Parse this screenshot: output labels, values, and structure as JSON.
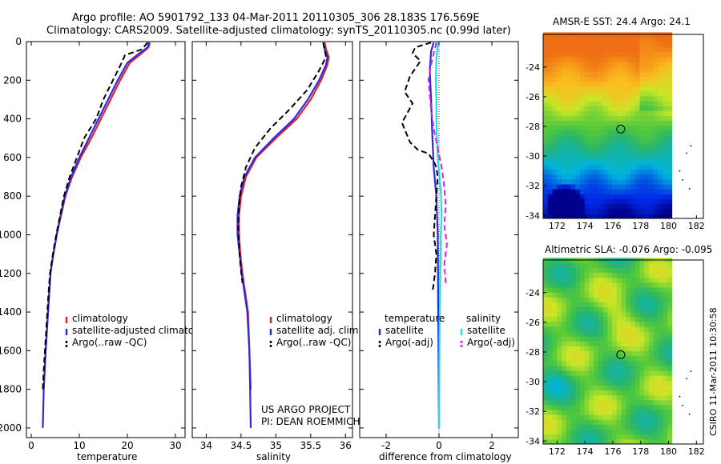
{
  "header": {
    "line1": "Argo profile: AO 5901792_133 04-Mar-2011 20110305_306 28.183S 176.569E",
    "line2": "Climatology: CARS2009. Satellite-adjusted climatology: synTS_20110305.nc (0.99d later)"
  },
  "credits": {
    "project": "US ARGO PROJECT",
    "pi": "PI: DEAN ROEMMICH",
    "stamp": "CSIRO 11-Mar-2011 10:30:58"
  },
  "colors": {
    "climatology": "#e8202a",
    "satellite": "#2a2ae0",
    "argo": "#000000",
    "sal_satellite": "#22e0e0",
    "sal_argo": "#e020e0"
  },
  "chart_data": [
    {
      "id": "temperature",
      "type": "line",
      "xlabel": "temperature",
      "ylabel": "",
      "xlim": [
        -1,
        32
      ],
      "ylim": [
        2050,
        0
      ],
      "xticks": [
        0,
        10,
        20,
        30
      ],
      "yticks": [
        0,
        200,
        400,
        600,
        800,
        1000,
        1200,
        1400,
        1600,
        1800,
        2000
      ],
      "legend": [
        "climatology",
        "satellite-adjusted climatology",
        "Argo(..raw -QC)"
      ],
      "series": [
        {
          "name": "climatology",
          "style": "solid",
          "color": "climatology",
          "points": [
            [
              24.7,
              5
            ],
            [
              24.4,
              30
            ],
            [
              22.5,
              70
            ],
            [
              20.5,
              110
            ],
            [
              18.5,
              200
            ],
            [
              16.5,
              300
            ],
            [
              14.5,
              400
            ],
            [
              12.5,
              500
            ],
            [
              10.3,
              600
            ],
            [
              8.5,
              700
            ],
            [
              7.1,
              800
            ],
            [
              6.2,
              900
            ],
            [
              5.3,
              1000
            ],
            [
              4.6,
              1100
            ],
            [
              4.0,
              1200
            ],
            [
              3.5,
              1400
            ],
            [
              3.0,
              1600
            ],
            [
              2.6,
              1800
            ]
          ]
        },
        {
          "name": "satellite-adjusted climatology",
          "style": "solid",
          "color": "satellite",
          "points": [
            [
              24.5,
              5
            ],
            [
              24.2,
              30
            ],
            [
              22.0,
              70
            ],
            [
              20.0,
              110
            ],
            [
              18.0,
              200
            ],
            [
              16.0,
              300
            ],
            [
              14.0,
              400
            ],
            [
              12.0,
              500
            ],
            [
              10.0,
              600
            ],
            [
              8.3,
              700
            ],
            [
              7.0,
              800
            ],
            [
              6.1,
              900
            ],
            [
              5.3,
              1000
            ],
            [
              4.6,
              1100
            ],
            [
              4.0,
              1200
            ],
            [
              3.5,
              1400
            ],
            [
              3.0,
              1600
            ],
            [
              2.6,
              1800
            ],
            [
              2.4,
              2000
            ]
          ]
        },
        {
          "name": "Argo(..raw -QC)",
          "style": "dashed",
          "color": "argo",
          "points": [
            [
              24.2,
              5
            ],
            [
              23.0,
              40
            ],
            [
              19.5,
              70
            ],
            [
              19.0,
              100
            ],
            [
              17.0,
              200
            ],
            [
              15.0,
              300
            ],
            [
              13.5,
              400
            ],
            [
              11.0,
              500
            ],
            [
              9.5,
              600
            ],
            [
              8.0,
              700
            ],
            [
              6.8,
              800
            ],
            [
              6.0,
              900
            ],
            [
              5.2,
              1000
            ],
            [
              4.5,
              1100
            ],
            [
              3.9,
              1200
            ],
            [
              3.6,
              1300
            ],
            [
              3.1,
              1500
            ],
            [
              2.6,
              1700
            ],
            [
              2.4,
              1800
            ]
          ]
        }
      ]
    },
    {
      "id": "salinity",
      "type": "line",
      "xlabel": "salinity",
      "ylabel": "",
      "xlim": [
        33.8,
        36.1
      ],
      "ylim": [
        2050,
        0
      ],
      "xticks": [
        34,
        34.5,
        35,
        35.5,
        36
      ],
      "legend": [
        "climatology",
        "satellite adj. clim.",
        "Argo(..raw -QC)"
      ],
      "series": [
        {
          "name": "climatology",
          "style": "solid",
          "color": "climatology",
          "points": [
            [
              35.7,
              5
            ],
            [
              35.72,
              40
            ],
            [
              35.76,
              80
            ],
            [
              35.74,
              120
            ],
            [
              35.65,
              200
            ],
            [
              35.5,
              300
            ],
            [
              35.3,
              400
            ],
            [
              35.0,
              500
            ],
            [
              34.72,
              600
            ],
            [
              34.57,
              700
            ],
            [
              34.5,
              800
            ],
            [
              34.47,
              900
            ],
            [
              34.47,
              1000
            ],
            [
              34.49,
              1100
            ],
            [
              34.52,
              1200
            ],
            [
              34.56,
              1300
            ],
            [
              34.6,
              1400
            ],
            [
              34.62,
              1600
            ],
            [
              34.64,
              1800
            ]
          ]
        },
        {
          "name": "satellite adj. clim.",
          "style": "solid",
          "color": "satellite",
          "points": [
            [
              35.68,
              5
            ],
            [
              35.7,
              40
            ],
            [
              35.74,
              80
            ],
            [
              35.72,
              120
            ],
            [
              35.62,
              200
            ],
            [
              35.46,
              300
            ],
            [
              35.26,
              400
            ],
            [
              34.97,
              500
            ],
            [
              34.7,
              600
            ],
            [
              34.55,
              700
            ],
            [
              34.48,
              800
            ],
            [
              34.45,
              900
            ],
            [
              34.45,
              1000
            ],
            [
              34.48,
              1100
            ],
            [
              34.51,
              1200
            ],
            [
              34.55,
              1300
            ],
            [
              34.59,
              1400
            ],
            [
              34.62,
              1600
            ],
            [
              34.63,
              1800
            ],
            [
              34.64,
              2000
            ]
          ]
        },
        {
          "name": "Argo(..raw -QC)",
          "style": "dashed",
          "color": "argo",
          "points": [
            [
              35.68,
              5
            ],
            [
              35.7,
              40
            ],
            [
              35.72,
              80
            ],
            [
              35.62,
              150
            ],
            [
              35.45,
              250
            ],
            [
              35.2,
              350
            ],
            [
              34.92,
              450
            ],
            [
              34.7,
              550
            ],
            [
              34.57,
              650
            ],
            [
              34.5,
              750
            ],
            [
              34.47,
              850
            ],
            [
              34.46,
              950
            ],
            [
              34.47,
              1050
            ],
            [
              34.49,
              1150
            ],
            [
              34.52,
              1250
            ]
          ]
        }
      ]
    },
    {
      "id": "difference",
      "type": "line",
      "xlabel": "difference from climatology",
      "ylabel": "",
      "xlim": [
        -3,
        3
      ],
      "ylim": [
        2050,
        0
      ],
      "xticks": [
        -2,
        0,
        2
      ],
      "legend": [
        "temperature",
        "satellite",
        "Argo(-adj)",
        "salinity",
        "satellite",
        "Argo(-adj)"
      ],
      "series": [
        {
          "name": "temperature satellite",
          "style": "solid",
          "color": "satellite",
          "points": [
            [
              -0.2,
              5
            ],
            [
              -0.3,
              50
            ],
            [
              -0.35,
              150
            ],
            [
              -0.3,
              300
            ],
            [
              -0.25,
              500
            ],
            [
              -0.2,
              650
            ],
            [
              -0.1,
              800
            ],
            [
              -0.05,
              1000
            ],
            [
              -0.03,
              1400
            ],
            [
              0.0,
              2000
            ]
          ]
        },
        {
          "name": "temperature Argo(-adj)",
          "style": "dashed",
          "color": "argo",
          "points": [
            [
              -0.3,
              5
            ],
            [
              -0.9,
              30
            ],
            [
              -1.0,
              60
            ],
            [
              -0.7,
              100
            ],
            [
              -1.1,
              180
            ],
            [
              -1.3,
              260
            ],
            [
              -1.0,
              320
            ],
            [
              -1.4,
              420
            ],
            [
              -1.1,
              520
            ],
            [
              -0.8,
              560
            ],
            [
              -0.4,
              580
            ],
            [
              -0.2,
              620
            ],
            [
              -0.1,
              650
            ],
            [
              -0.05,
              700
            ],
            [
              -0.1,
              800
            ],
            [
              -0.15,
              900
            ],
            [
              -0.2,
              1000
            ],
            [
              -0.1,
              1100
            ],
            [
              -0.15,
              1200
            ],
            [
              -0.25,
              1300
            ]
          ]
        },
        {
          "name": "salinity satellite",
          "style": "solid",
          "color": "sal_satellite",
          "points": [
            [
              -0.05,
              5
            ],
            [
              -0.1,
              100
            ],
            [
              -0.12,
              200
            ],
            [
              -0.1,
              300
            ],
            [
              -0.1,
              400
            ],
            [
              -0.08,
              500
            ],
            [
              -0.05,
              600
            ],
            [
              0.02,
              700
            ],
            [
              0.08,
              800
            ],
            [
              0.1,
              900
            ],
            [
              0.07,
              1000
            ],
            [
              0.05,
              1200
            ],
            [
              0.02,
              1500
            ],
            [
              0.0,
              2000
            ]
          ]
        },
        {
          "name": "salinity Argo(-adj)",
          "style": "dashed",
          "color": "sal_argo",
          "points": [
            [
              -0.1,
              5
            ],
            [
              -0.2,
              60
            ],
            [
              -0.3,
              120
            ],
            [
              -0.4,
              200
            ],
            [
              -0.35,
              280
            ],
            [
              -0.3,
              350
            ],
            [
              -0.2,
              450
            ],
            [
              -0.05,
              550
            ],
            [
              0.1,
              650
            ],
            [
              0.2,
              750
            ],
            [
              0.25,
              850
            ],
            [
              0.2,
              950
            ],
            [
              0.3,
              1050
            ],
            [
              0.2,
              1150
            ],
            [
              0.25,
              1250
            ]
          ]
        }
      ]
    },
    {
      "id": "sst-map",
      "type": "heatmap",
      "title": "AMSR-E SST: 24.4 Argo: 24.1",
      "xlim": [
        171,
        182.5
      ],
      "ylim": [
        -34.2,
        -21.8
      ],
      "xticks": [
        172,
        174,
        176,
        178,
        180,
        182
      ],
      "yticks": [
        -24,
        -26,
        -28,
        -30,
        -32,
        -34
      ],
      "float_position": {
        "lon": 176.569,
        "lat": -28.183
      },
      "data_lon_max": 180
    },
    {
      "id": "sla-map",
      "type": "heatmap",
      "title": "Altimetric SLA: -0.076 Argo: -0.095",
      "xlim": [
        171,
        182.5
      ],
      "ylim": [
        -34.2,
        -21.8
      ],
      "xticks": [
        172,
        174,
        176,
        178,
        180,
        182
      ],
      "yticks": [
        -24,
        -26,
        -28,
        -30,
        -32,
        -34
      ],
      "float_position": {
        "lon": 176.569,
        "lat": -28.183
      },
      "data_lon_max": 180
    }
  ]
}
